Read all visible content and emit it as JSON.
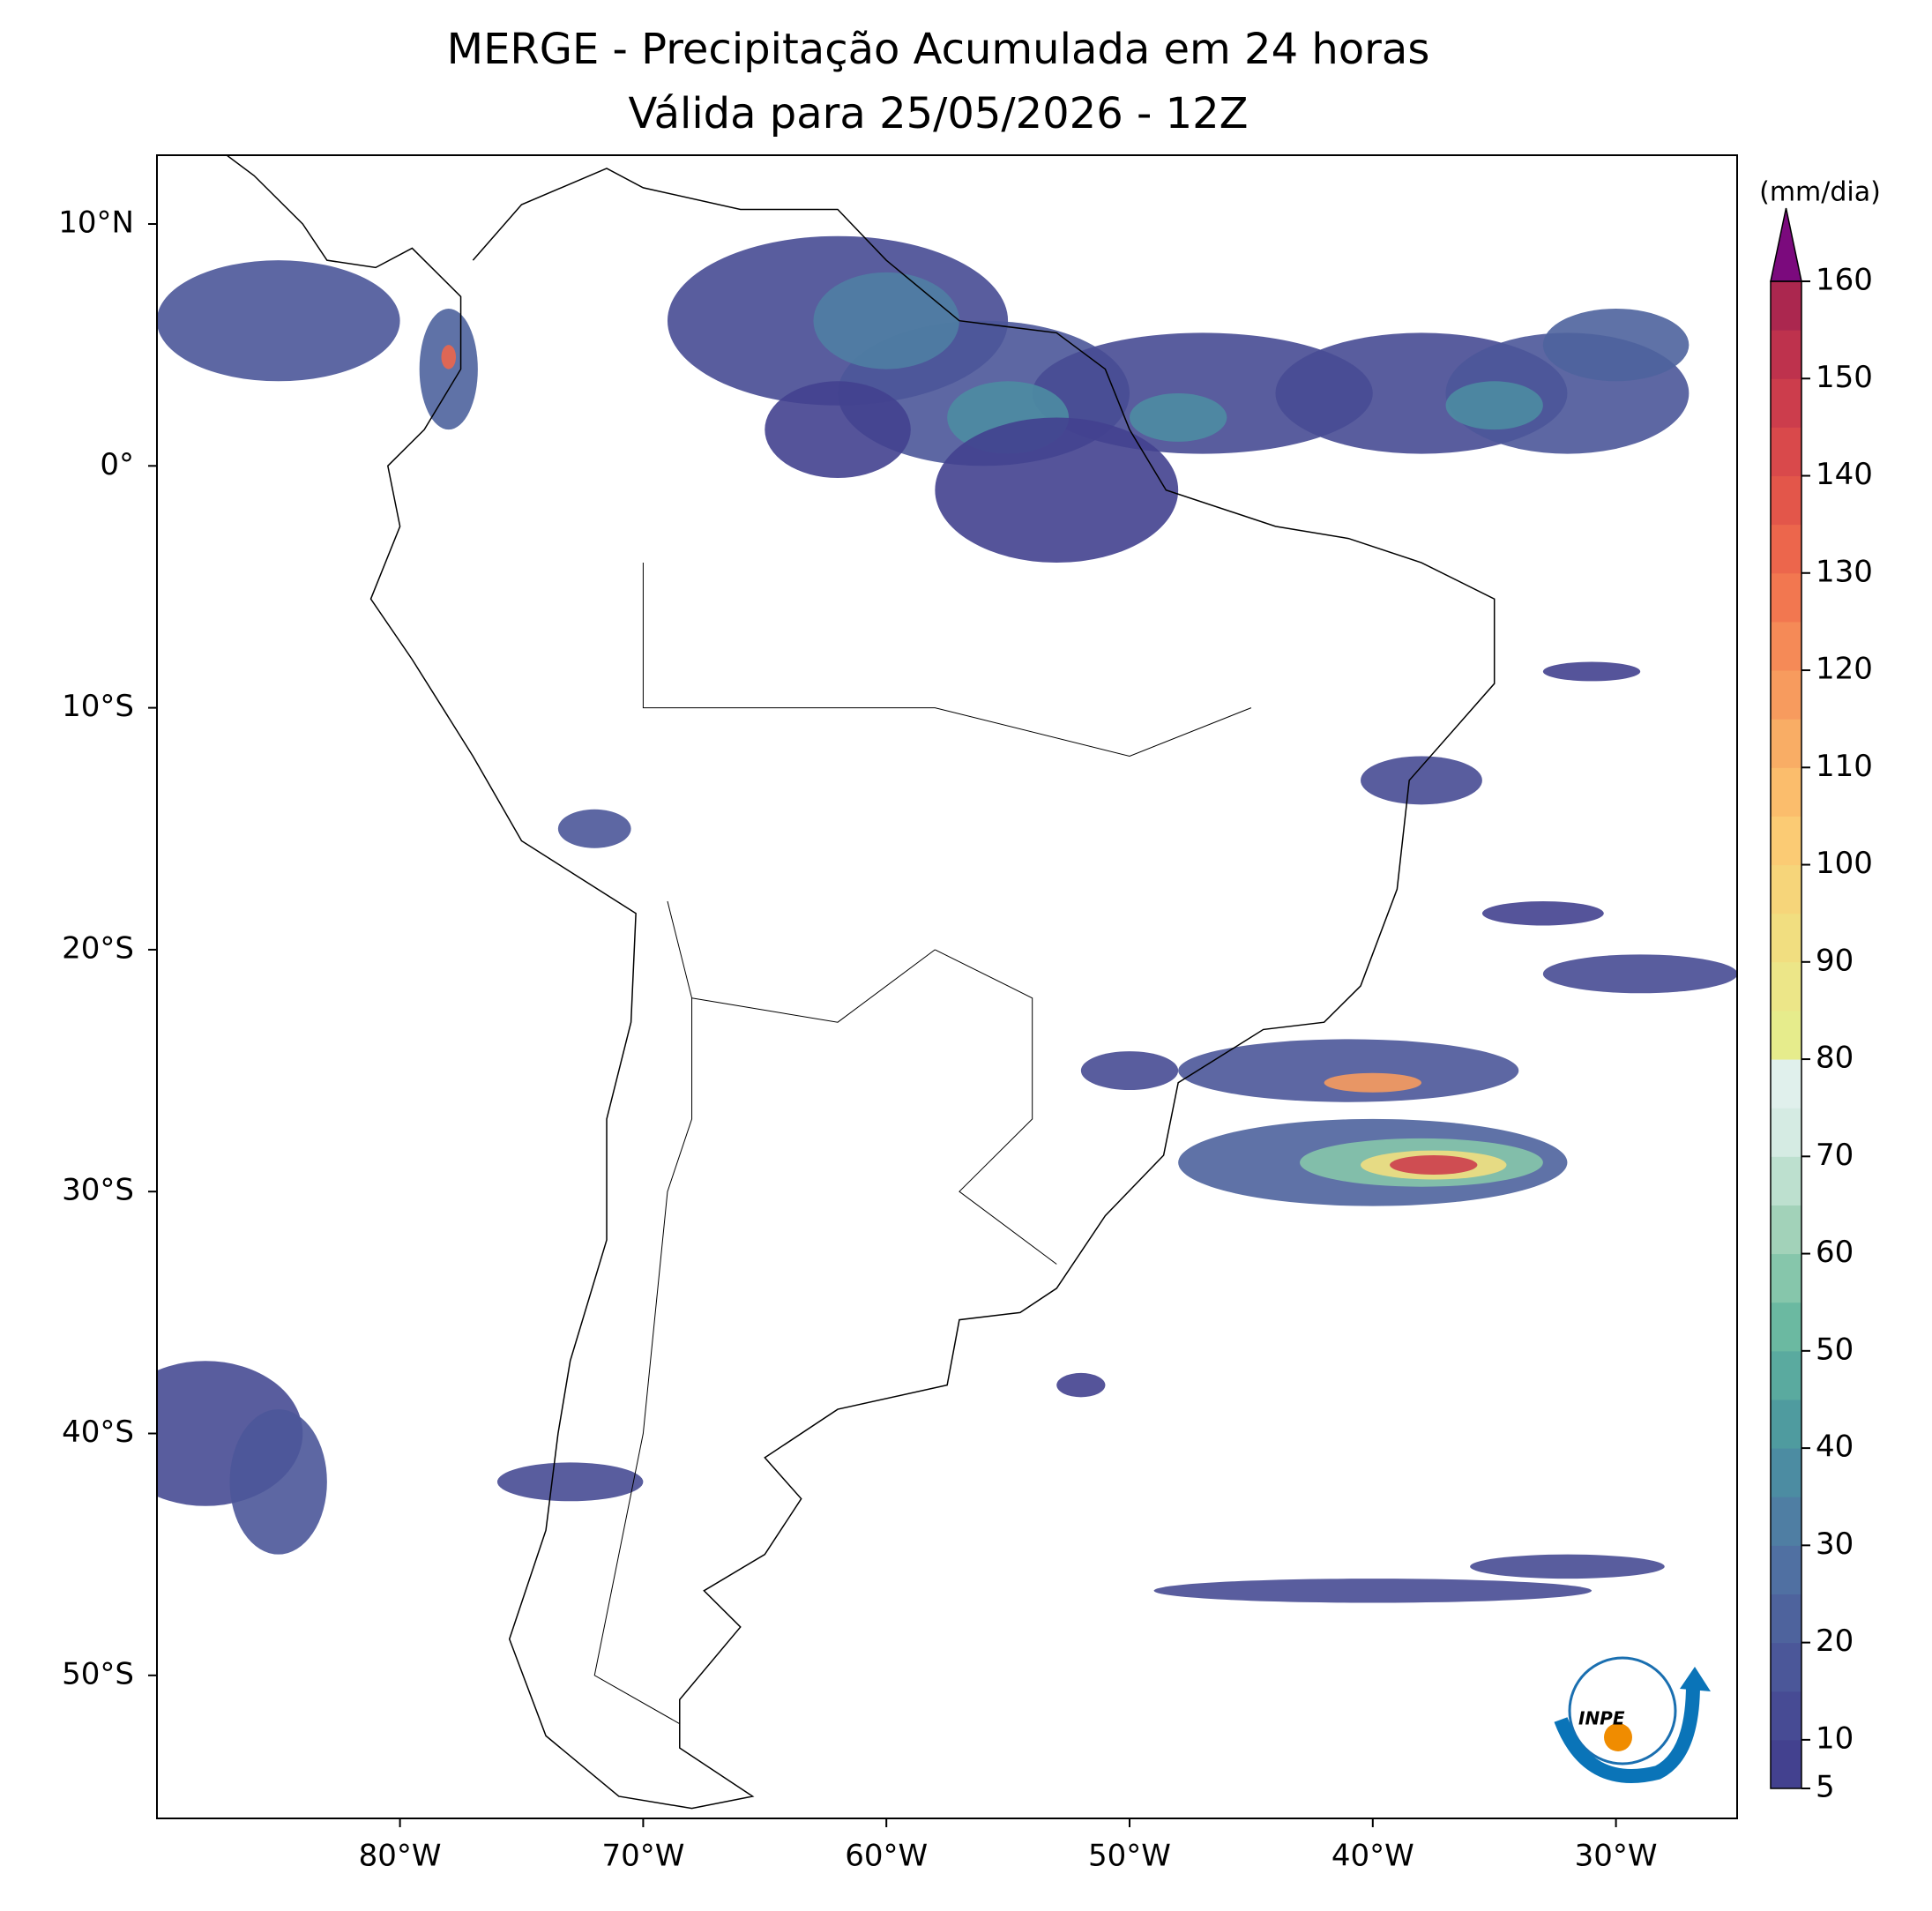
{
  "header": {
    "title": "MERGE - Precipitação Acumulada em 24 horas",
    "subtitle": "Válida para 25/05/2026 - 12Z"
  },
  "map": {
    "lon_ticks": [
      {
        "value": -80,
        "label": "80°W"
      },
      {
        "value": -70,
        "label": "70°W"
      },
      {
        "value": -60,
        "label": "60°W"
      },
      {
        "value": -50,
        "label": "50°W"
      },
      {
        "value": -40,
        "label": "40°W"
      },
      {
        "value": -30,
        "label": "30°W"
      }
    ],
    "lat_ticks": [
      {
        "value": 10,
        "label": "10°N"
      },
      {
        "value": 0,
        "label": "0°"
      },
      {
        "value": -10,
        "label": "10°S"
      },
      {
        "value": -20,
        "label": "20°S"
      },
      {
        "value": -30,
        "label": "30°S"
      },
      {
        "value": -40,
        "label": "40°S"
      },
      {
        "value": -50,
        "label": "50°S"
      }
    ],
    "logo_text": "INPE"
  },
  "colorbar": {
    "unit": "(mm/dia)",
    "lim": [
      5,
      160
    ],
    "ticks": [
      5,
      10,
      20,
      30,
      40,
      50,
      60,
      70,
      80,
      90,
      100,
      110,
      120,
      130,
      140,
      150,
      160
    ],
    "levels": [
      5,
      10,
      15,
      20,
      25,
      30,
      35,
      40,
      45,
      50,
      55,
      60,
      65,
      70,
      75,
      80,
      85,
      90,
      95,
      100,
      105,
      110,
      115,
      120,
      125,
      130,
      135,
      140,
      145,
      150,
      155,
      160
    ],
    "colors": [
      "#43418f",
      "#474b94",
      "#4b5799",
      "#4e639d",
      "#5070a2",
      "#4f7ea3",
      "#4c8ca2",
      "#4f9b9f",
      "#5aaa9f",
      "#6bb9a1",
      "#86c6ab",
      "#a2d2b9",
      "#bde0cf",
      "#d5ebe3",
      "#e0f0ec",
      "#e6ec8c",
      "#ece688",
      "#f1de80",
      "#f6d57a",
      "#fbcb74",
      "#fbbd6c",
      "#f9ad65",
      "#f79b5e",
      "#f58a57",
      "#f27750",
      "#ec664c",
      "#e3564a",
      "#d9494b",
      "#cc3d4c",
      "#be324d",
      "#ab274f"
    ],
    "extend_color": "#7b0a7d"
  }
}
